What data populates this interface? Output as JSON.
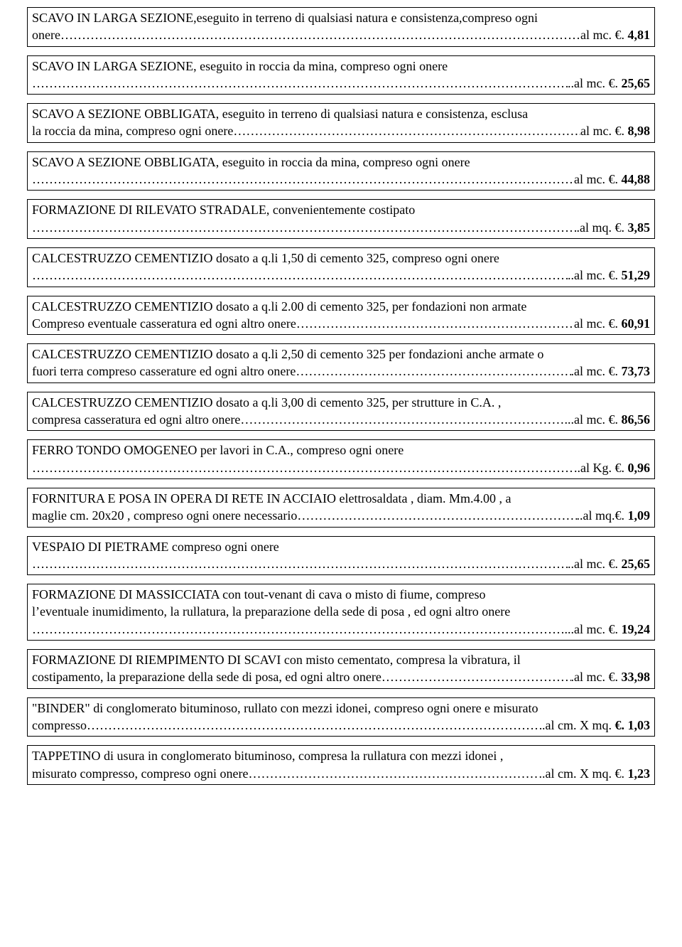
{
  "items": [
    {
      "lines": [
        "SCAVO IN LARGA SEZIONE,eseguito in terreno di qualsiasi natura e consistenza,compreso ogni"
      ],
      "lastLinePrefix": "onere",
      "unit": "al mc. €.",
      "amount": "4,81",
      "boldCurrency": false
    },
    {
      "lines": [
        "SCAVO IN LARGA SEZIONE, eseguito in roccia da mina, compreso ogni onere"
      ],
      "lastLinePrefix": "",
      "unit": "..al mc. €.",
      "amount": "25,65",
      "boldCurrency": false
    },
    {
      "lines": [
        "SCAVO A SEZIONE OBBLIGATA, eseguito in terreno di qualsiasi natura e consistenza, esclusa"
      ],
      "lastLinePrefix": "la roccia da mina, compreso ogni onere",
      "unit": "al mc. €.",
      "amount": "8,98",
      "boldCurrency": false
    },
    {
      "lines": [
        "SCAVO A SEZIONE OBBLIGATA, eseguito in roccia da mina, compreso ogni onere"
      ],
      "lastLinePrefix": "",
      "unit": "al mc. €.",
      "amount": "44,88",
      "boldCurrency": false
    },
    {
      "lines": [
        "FORMAZIONE DI RILEVATO STRADALE, convenientemente costipato"
      ],
      "lastLinePrefix": "",
      "unit": ".al mq. €.",
      "amount": "3,85",
      "boldCurrency": false
    },
    {
      "lines": [
        "CALCESTRUZZO CEMENTIZIO  dosato a q.li 1,50 di cemento 325, compreso ogni onere"
      ],
      "lastLinePrefix": "",
      "unit": "..al mc. €.",
      "amount": "51,29",
      "boldCurrency": false
    },
    {
      "lines": [
        "CALCESTRUZZO CEMENTIZIO  dosato a q.li 2.00 di cemento 325, per fondazioni non armate"
      ],
      "lastLinePrefix": "Compreso eventuale casseratura ed ogni altro onere",
      "unit": "al mc. €.",
      "amount": "60,91",
      "boldCurrency": false
    },
    {
      "lines": [
        "CALCESTRUZZO CEMENTIZIO dosato a q.li 2,50 di cemento 325 per fondazioni anche armate o"
      ],
      "lastLinePrefix": "fuori terra compreso casserature ed ogni altro onere",
      "unit": ".al mc. €.",
      "amount": "73,73",
      "boldCurrency": false
    },
    {
      "lines": [
        "CALCESTRUZZO CEMENTIZIO dosato a q.li 3,00 di cemento 325, per strutture in C.A. ,"
      ],
      "lastLinePrefix": "compresa casseratura ed ogni altro onere",
      "unit": "...al mc. €.",
      "amount": "86,56",
      "boldCurrency": false
    },
    {
      "lines": [
        "FERRO TONDO OMOGENEO per lavori in C.A., compreso ogni onere"
      ],
      "lastLinePrefix": "",
      "unit": "..al Kg. €.",
      "amount": "0,96",
      "boldCurrency": false
    },
    {
      "lines": [
        "FORNITURA E POSA IN OPERA DI RETE IN ACCIAIO elettrosaldata , diam. Mm.4.00 , a"
      ],
      "lastLinePrefix": "maglie cm. 20x20 , compreso ogni onere necessario",
      "unit": "..al mq.€.",
      "amount": "1,09",
      "boldCurrency": false
    },
    {
      "lines": [
        "VESPAIO DI PIETRAME compreso ogni onere"
      ],
      "lastLinePrefix": "",
      "unit": "..al mc. €.",
      "amount": "25,65",
      "boldCurrency": false
    },
    {
      "lines": [
        "FORMAZIONE DI MASSICCIATA con tout-venant di cava o misto di fiume, compreso",
        "l’eventuale inumidimento, la rullatura, la preparazione della sede di posa , ed ogni altro onere"
      ],
      "lastLinePrefix": "",
      "unit": "...al mc. €.",
      "amount": "19,24",
      "boldCurrency": false
    },
    {
      "lines": [
        "FORMAZIONE DI RIEMPIMENTO DI SCAVI con misto cementato, compresa la vibratura, il"
      ],
      "lastLinePrefix": "costipamento, la preparazione della sede di posa, ed ogni altro onere",
      "unit": ".al mc. €.",
      "amount": "33,98",
      "boldCurrency": false
    },
    {
      "lines": [
        "\"BINDER\" di conglomerato bituminoso, rullato con mezzi idonei, compreso ogni onere e misurato"
      ],
      "lastLinePrefix": "compresso",
      "unit": ".al cm. X mq. €.",
      "amount": " 1,03",
      "boldCurrency": true
    },
    {
      "lines": [
        "TAPPETINO di usura in conglomerato bituminoso, compresa la rullatura con mezzi idonei ,"
      ],
      "lastLinePrefix": "misurato compresso, compreso ogni onere",
      "unit": "..al cm. X mq. €.",
      "amount": "1,23",
      "boldCurrency": false
    }
  ],
  "style": {
    "background": "#ffffff",
    "text_color": "#000000",
    "border_color": "#000000",
    "font_family": "Times New Roman",
    "font_size_pt": 13
  }
}
